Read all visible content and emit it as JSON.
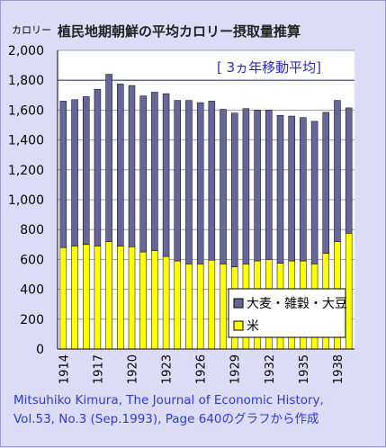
{
  "chart_data": {
    "type": "bar",
    "stacked": true,
    "title": "植民地期朝鮮の平均カロリー摂取量推算",
    "unit_label": "カロリー",
    "subtitle": "[ 3ヵ年移動平均]",
    "years": [
      1914,
      1915,
      1916,
      1917,
      1918,
      1919,
      1920,
      1921,
      1922,
      1923,
      1924,
      1925,
      1926,
      1927,
      1928,
      1929,
      1930,
      1931,
      1932,
      1933,
      1934,
      1935,
      1936,
      1937,
      1938,
      1939
    ],
    "x_tick_labels": [
      "1914",
      "1917",
      "1920",
      "1923",
      "1926",
      "1929",
      "1932",
      "1935",
      "1938"
    ],
    "y_tick_labels": [
      "0",
      "200",
      "400",
      "600",
      "800",
      "1,000",
      "1,200",
      "1,400",
      "1,600",
      "1,800",
      "2,000"
    ],
    "ylim": [
      0,
      2000
    ],
    "ytick_step": 200,
    "reference_line": 1800,
    "grid": true,
    "legend_position": "bottom-right",
    "series": [
      {
        "name": "米",
        "color": "#ffff00",
        "values": [
          680,
          690,
          700,
          690,
          720,
          690,
          685,
          650,
          660,
          620,
          590,
          570,
          570,
          595,
          570,
          550,
          570,
          590,
          600,
          575,
          590,
          590,
          570,
          640,
          720,
          775
        ]
      },
      {
        "name": "大麦・雑穀・大豆",
        "color": "#66669a",
        "values": [
          980,
          980,
          990,
          1050,
          1120,
          1085,
          1080,
          1045,
          1060,
          1090,
          1075,
          1095,
          1080,
          1065,
          1035,
          1030,
          1040,
          1010,
          1000,
          990,
          970,
          960,
          955,
          945,
          945,
          840
        ]
      }
    ]
  },
  "source": {
    "line1": "Mitsuhiko Kimura, The Journal of Economic History,",
    "line2": "Vol.53, No.3 (Sep.1993), Page 640のグラフから作成"
  }
}
